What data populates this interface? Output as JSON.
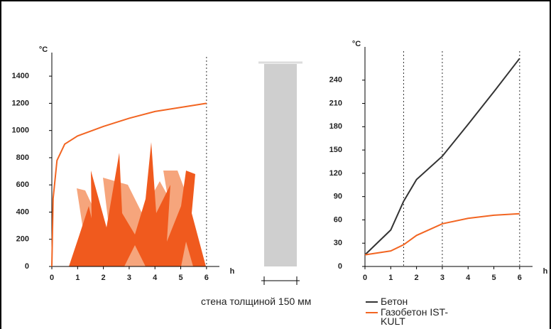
{
  "chart_data": [
    {
      "type": "line",
      "y_label": "°C",
      "x_label": "h",
      "x": [
        0,
        0.05,
        0.2,
        0.5,
        1,
        2,
        3,
        4,
        5,
        6
      ],
      "series": [
        {
          "color": "#f26522",
          "values": [
            0,
            500,
            780,
            900,
            960,
            1030,
            1090,
            1140,
            1170,
            1200
          ]
        }
      ],
      "xlim": [
        0,
        6.5
      ],
      "xticks": [
        0,
        1,
        2,
        3,
        4,
        5,
        6
      ],
      "ylim": [
        0,
        1500
      ],
      "yticks": [
        0,
        200,
        400,
        600,
        800,
        1000,
        1200,
        1400
      ],
      "vlines": [
        6
      ]
    },
    {
      "type": "line",
      "y_label": "°C",
      "x_label": "h",
      "x": [
        0,
        1,
        1.5,
        2,
        3,
        4,
        5,
        6
      ],
      "series": [
        {
          "name": "Бетон",
          "color": "#333333",
          "values": [
            15,
            47,
            84,
            112,
            142,
            183,
            225,
            268
          ]
        },
        {
          "name": "Газобетон IST-KULT",
          "color": "#f26522",
          "values": [
            15,
            20,
            28,
            40,
            55,
            62,
            66,
            68
          ]
        }
      ],
      "xlim": [
        0,
        6.5
      ],
      "xticks": [
        0,
        1,
        2,
        3,
        4,
        5,
        6
      ],
      "ylim": [
        0,
        270
      ],
      "yticks": [
        0,
        30,
        60,
        90,
        120,
        150,
        180,
        210,
        240
      ],
      "vlines": [
        1.5,
        3,
        6
      ],
      "legend": "bottom"
    }
  ],
  "wall_caption": "стена толщиной 150 мм"
}
